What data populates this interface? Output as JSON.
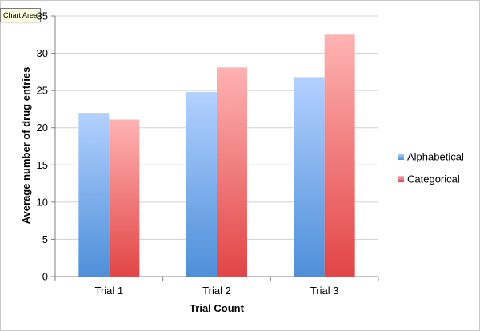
{
  "tooltip": "Chart Area",
  "chart_data": {
    "type": "bar",
    "categories": [
      "Trial 1",
      "Trial 2",
      "Trial 3"
    ],
    "series": [
      {
        "name": "Alphabetical",
        "values": [
          22,
          24.8,
          26.8
        ],
        "color_top": "#b3d1ff",
        "color_bottom": "#4d8fd9"
      },
      {
        "name": "Categorical",
        "values": [
          21.1,
          28.1,
          32.5
        ],
        "color_top": "#ffb3b3",
        "color_bottom": "#e24545"
      }
    ],
    "xlabel": "Trial Count",
    "ylabel": "Average number of drug entries",
    "ylim": [
      0,
      35
    ],
    "yticks": [
      0,
      5,
      10,
      15,
      20,
      25,
      30,
      35
    ],
    "grid": true,
    "legend": "right"
  }
}
